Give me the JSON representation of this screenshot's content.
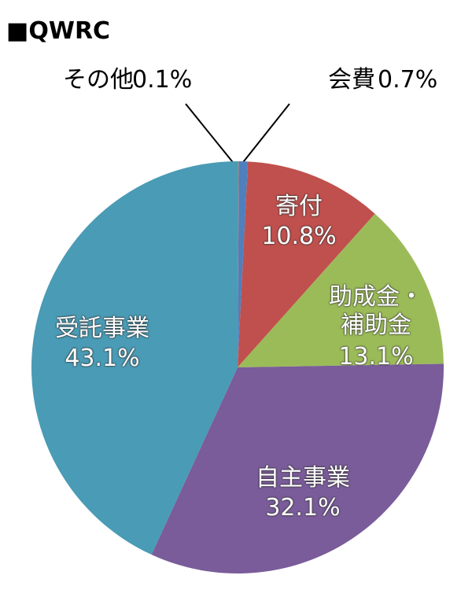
{
  "chart_data": {
    "type": "pie",
    "title": "■QWRC",
    "categories": [
      "その他",
      "会費",
      "寄付",
      "助成金・補助金",
      "自主事業",
      "受託事業"
    ],
    "values": [
      0.1,
      0.7,
      10.8,
      13.1,
      32.1,
      43.1
    ],
    "value_labels": [
      "0.1%",
      "0.7%",
      "10.8%",
      "13.1%",
      "32.1%",
      "43.1%"
    ],
    "colors": [
      "#8c8c8c",
      "#4f7fbd",
      "#c0504d",
      "#9bbb59",
      "#7a5c9a",
      "#4a9bb5"
    ]
  }
}
